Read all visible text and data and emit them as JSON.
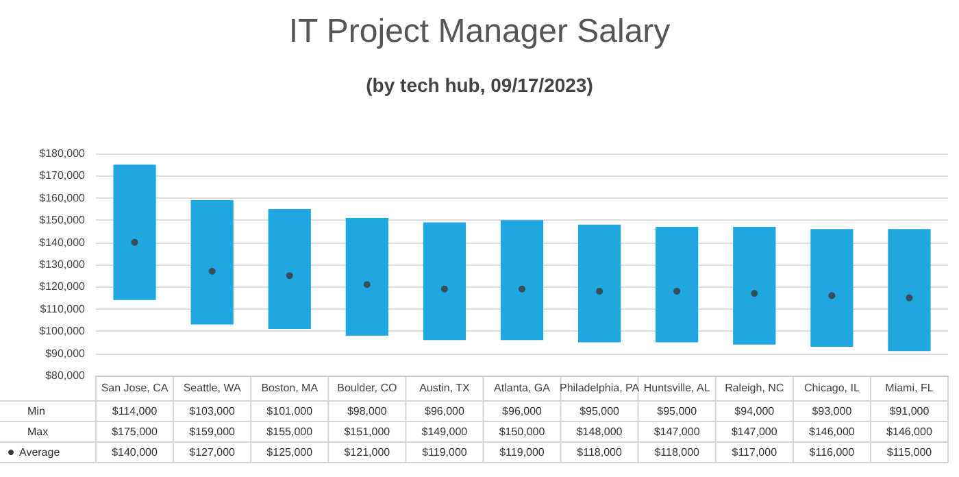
{
  "chart_data": {
    "type": "bar",
    "title": "IT Project Manager Salary",
    "subtitle": "(by tech hub, 09/17/2023)",
    "categories": [
      "San Jose, CA",
      "Seattle, WA",
      "Boston, MA",
      "Boulder, CO",
      "Austin, TX",
      "Atlanta, GA",
      "Philadelphia, PA",
      "Huntsville, AL",
      "Raleigh, NC",
      "Chicago, IL",
      "Miami, FL"
    ],
    "series": [
      {
        "color": "#1ea7e1",
        "base": [
          114000,
          103000,
          101000,
          98000,
          96000,
          96000,
          95000,
          95000,
          94000,
          93000,
          91000
        ],
        "values": [
          61000,
          56000,
          54000,
          53000,
          53000,
          54000,
          53000,
          52000,
          53000,
          53000,
          55000
        ]
      },
      {
        "type": "scatter",
        "name": "Average",
        "color": "#3a3a3a",
        "values": [
          140000,
          127000,
          125000,
          121000,
          119000,
          119000,
          118000,
          118000,
          117000,
          116000,
          115000
        ],
        "value_labels": [
          "$140,000",
          "$127,000",
          "$125,000",
          "$121,000",
          "$119,000",
          "$119,000",
          "$118,000",
          "$118,000",
          "$117,000",
          "$116,000",
          "$115,000"
        ]
      }
    ],
    "annotations": [
      "Min",
      "Max",
      "$114,000",
      "$103,000",
      "$101,000",
      "$98,000",
      "$96,000",
      "$96,000",
      "$95,000",
      "$95,000",
      "$94,000",
      "$93,000",
      "$91,000",
      "$175,000",
      "$159,000",
      "$155,000",
      "$151,000",
      "$149,000",
      "$150,000",
      "$148,000",
      "$147,000",
      "$147,000",
      "$146,000",
      "$146,000"
    ],
    "ylim": [
      80000,
      180000
    ],
    "yticks": [
      {
        "value": 80000,
        "label": "$80,000"
      },
      {
        "value": 90000,
        "label": "$90,000"
      },
      {
        "value": 100000,
        "label": "$100,000"
      },
      {
        "value": 110000,
        "label": "$110,000"
      },
      {
        "value": 120000,
        "label": "$120,000"
      },
      {
        "value": 130000,
        "label": "$130,000"
      },
      {
        "value": 140000,
        "label": "$140,000"
      },
      {
        "value": 150000,
        "label": "$150,000"
      },
      {
        "value": 160000,
        "label": "$160,000"
      },
      {
        "value": 170000,
        "label": "$170,000"
      },
      {
        "value": 180000,
        "label": "$180,000"
      }
    ],
    "grid": "y",
    "legend": "bottom",
    "marker": "circle"
  }
}
